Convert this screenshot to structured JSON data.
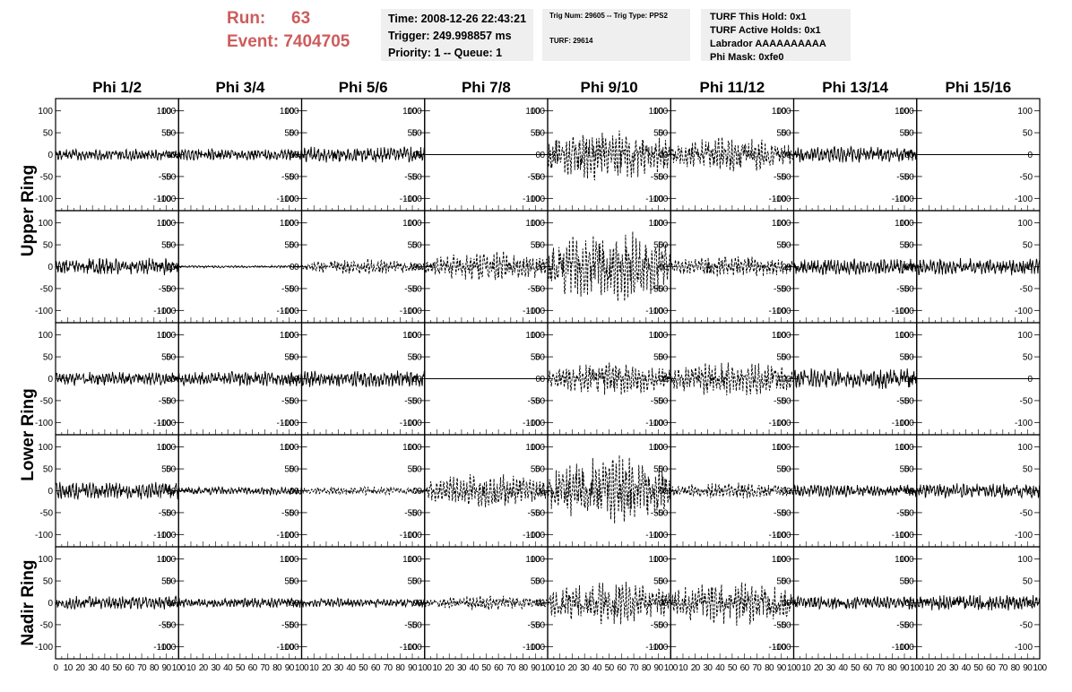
{
  "header": {
    "run_label": "Run:",
    "run_value": "63",
    "event_label": "Event:",
    "event_value": "7404705",
    "time_line": "Time: 2008-12-26 22:43:21",
    "trigger_line": "Trigger: 249.998857 ms",
    "priority_line": "Priority: 1 -- Queue: 1",
    "trig_num_line": "Trig Num: 29605 -- Trig Type: PPS2",
    "turf_line": "TURF: 29614",
    "turf_hold_line": "TURF This Hold: 0x1",
    "turf_active_line": "TURF Active Holds: 0x1",
    "labrador_line": "Labrador AAAAAAAAAA",
    "phi_mask_line": "Phi Mask: 0xfe0"
  },
  "chart_data": {
    "type": "line",
    "columns": [
      "Phi 1/2",
      "Phi 3/4",
      "Phi 5/6",
      "Phi 7/8",
      "Phi 9/10",
      "Phi 11/12",
      "Phi 13/14",
      "Phi 15/16"
    ],
    "rows": [
      "Upper Ring",
      "Upper Ring",
      "Lower Ring",
      "Lower Ring",
      "Nadir Ring"
    ],
    "ring_labels": [
      "Upper Ring",
      "Lower Ring",
      "Nadir Ring"
    ],
    "xlim": [
      0,
      100
    ],
    "ylim": [
      -128,
      128
    ],
    "x_ticks": [
      0,
      10,
      20,
      30,
      40,
      50,
      60,
      70,
      80,
      90,
      100
    ],
    "y_ticks": [
      100,
      50,
      0,
      -50,
      -100
    ],
    "x_tick_labels": [
      "0",
      "10",
      "20",
      "30",
      "40",
      "50",
      "60",
      "70",
      "80",
      "90",
      "100"
    ],
    "y_tick_labels": [
      "100",
      "50",
      "0",
      "-50",
      "-100"
    ],
    "samples": 260,
    "panels": [
      [
        {
          "amp": 10,
          "style": "solid"
        },
        {
          "amp": 10,
          "style": "solid"
        },
        {
          "amp": 14,
          "style": "solid"
        },
        {
          "amp": 0,
          "style": "solid"
        },
        {
          "amp": 48,
          "style": "dashed"
        },
        {
          "amp": 30,
          "style": "dashed"
        },
        {
          "amp": 14,
          "style": "solid"
        },
        {
          "amp": 0,
          "style": "solid"
        }
      ],
      [
        {
          "amp": 15,
          "style": "solid"
        },
        {
          "amp": 2,
          "style": "solid"
        },
        {
          "amp": 14,
          "style": "dashed"
        },
        {
          "amp": 28,
          "style": "dashed"
        },
        {
          "amp": 65,
          "style": "dashed"
        },
        {
          "amp": 20,
          "style": "dashed"
        },
        {
          "amp": 14,
          "style": "solid"
        },
        {
          "amp": 15,
          "style": "solid"
        }
      ],
      [
        {
          "amp": 12,
          "style": "solid"
        },
        {
          "amp": 13,
          "style": "solid"
        },
        {
          "amp": 15,
          "style": "solid"
        },
        {
          "amp": 0,
          "style": "solid"
        },
        {
          "amp": 30,
          "style": "dashed"
        },
        {
          "amp": 32,
          "style": "dashed"
        },
        {
          "amp": 18,
          "style": "solid"
        },
        {
          "amp": 0,
          "style": "solid"
        }
      ],
      [
        {
          "amp": 15,
          "style": "solid"
        },
        {
          "amp": 7,
          "style": "solid"
        },
        {
          "amp": 8,
          "style": "dashed"
        },
        {
          "amp": 30,
          "style": "dashed"
        },
        {
          "amp": 62,
          "style": "dashed"
        },
        {
          "amp": 15,
          "style": "dashed"
        },
        {
          "amp": 11,
          "style": "solid"
        },
        {
          "amp": 13,
          "style": "solid"
        }
      ],
      [
        {
          "amp": 12,
          "style": "solid"
        },
        {
          "amp": 9,
          "style": "solid"
        },
        {
          "amp": 8,
          "style": "solid"
        },
        {
          "amp": 13,
          "style": "dashed"
        },
        {
          "amp": 38,
          "style": "dashed"
        },
        {
          "amp": 40,
          "style": "dashed"
        },
        {
          "amp": 12,
          "style": "solid"
        },
        {
          "amp": 14,
          "style": "solid"
        }
      ]
    ]
  },
  "colors": {
    "run_text": "#cd5c5c",
    "info_background": "#efefef",
    "trace": "#000000"
  }
}
